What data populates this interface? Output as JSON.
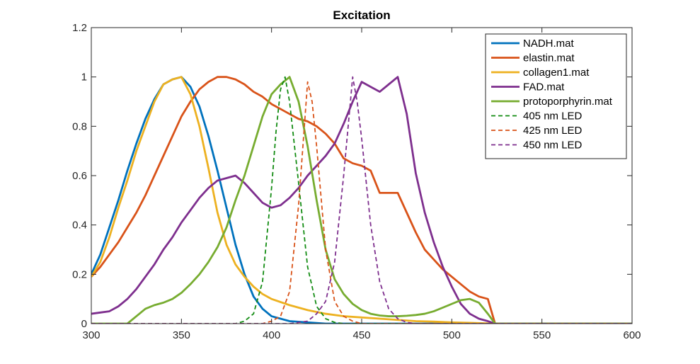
{
  "chart_data": {
    "type": "line",
    "title": "Excitation",
    "xlabel": "",
    "ylabel": "",
    "xlim": [
      300,
      600
    ],
    "ylim": [
      0,
      1.2
    ],
    "xticks": [
      300,
      350,
      400,
      450,
      500,
      550,
      600
    ],
    "xtick_labels": [
      "300",
      "350",
      "400",
      "450",
      "500",
      "550",
      "600"
    ],
    "yticks": [
      0,
      0.2,
      0.4,
      0.6,
      0.8,
      1,
      1.2
    ],
    "ytick_labels": [
      "0",
      "0.2",
      "0.4",
      "0.6",
      "0.8",
      "1",
      "1.2"
    ],
    "grid": false,
    "legend_position": "top-right",
    "series": [
      {
        "name": "NADH.mat",
        "color": "#0072BD",
        "dash": "solid",
        "points": [
          [
            300,
            0.2
          ],
          [
            305,
            0.28
          ],
          [
            310,
            0.39
          ],
          [
            315,
            0.5
          ],
          [
            320,
            0.62
          ],
          [
            325,
            0.73
          ],
          [
            330,
            0.83
          ],
          [
            335,
            0.91
          ],
          [
            340,
            0.97
          ],
          [
            345,
            0.99
          ],
          [
            350,
            1.0
          ],
          [
            355,
            0.96
          ],
          [
            360,
            0.88
          ],
          [
            365,
            0.76
          ],
          [
            370,
            0.62
          ],
          [
            375,
            0.47
          ],
          [
            380,
            0.32
          ],
          [
            385,
            0.2
          ],
          [
            390,
            0.11
          ],
          [
            395,
            0.06
          ],
          [
            400,
            0.03
          ],
          [
            410,
            0.01
          ],
          [
            430,
            0.0
          ],
          [
            600,
            0.0
          ]
        ]
      },
      {
        "name": "elastin.mat",
        "color": "#D95319",
        "dash": "solid",
        "points": [
          [
            300,
            0.19
          ],
          [
            305,
            0.23
          ],
          [
            310,
            0.28
          ],
          [
            315,
            0.33
          ],
          [
            320,
            0.39
          ],
          [
            325,
            0.45
          ],
          [
            330,
            0.52
          ],
          [
            335,
            0.6
          ],
          [
            340,
            0.68
          ],
          [
            345,
            0.76
          ],
          [
            350,
            0.84
          ],
          [
            355,
            0.9
          ],
          [
            360,
            0.95
          ],
          [
            365,
            0.98
          ],
          [
            370,
            1.0
          ],
          [
            375,
            1.0
          ],
          [
            380,
            0.99
          ],
          [
            385,
            0.97
          ],
          [
            390,
            0.94
          ],
          [
            395,
            0.92
          ],
          [
            400,
            0.89
          ],
          [
            405,
            0.87
          ],
          [
            410,
            0.85
          ],
          [
            415,
            0.83
          ],
          [
            420,
            0.82
          ],
          [
            425,
            0.8
          ],
          [
            430,
            0.77
          ],
          [
            435,
            0.73
          ],
          [
            440,
            0.67
          ],
          [
            445,
            0.65
          ],
          [
            450,
            0.64
          ],
          [
            455,
            0.62
          ],
          [
            460,
            0.53
          ],
          [
            465,
            0.53
          ],
          [
            470,
            0.53
          ],
          [
            475,
            0.45
          ],
          [
            480,
            0.37
          ],
          [
            485,
            0.3
          ],
          [
            490,
            0.26
          ],
          [
            495,
            0.22
          ],
          [
            500,
            0.19
          ],
          [
            505,
            0.16
          ],
          [
            510,
            0.13
          ],
          [
            515,
            0.11
          ],
          [
            520,
            0.1
          ],
          [
            524,
            0.0
          ],
          [
            600,
            0.0
          ]
        ]
      },
      {
        "name": "collagen1.mat",
        "color": "#EDB120",
        "dash": "solid",
        "points": [
          [
            300,
            0.19
          ],
          [
            305,
            0.25
          ],
          [
            310,
            0.35
          ],
          [
            315,
            0.47
          ],
          [
            320,
            0.58
          ],
          [
            325,
            0.7
          ],
          [
            330,
            0.8
          ],
          [
            335,
            0.9
          ],
          [
            340,
            0.97
          ],
          [
            345,
            0.99
          ],
          [
            350,
            1.0
          ],
          [
            355,
            0.93
          ],
          [
            360,
            0.8
          ],
          [
            365,
            0.63
          ],
          [
            370,
            0.45
          ],
          [
            375,
            0.32
          ],
          [
            380,
            0.24
          ],
          [
            385,
            0.19
          ],
          [
            390,
            0.15
          ],
          [
            395,
            0.12
          ],
          [
            400,
            0.1
          ],
          [
            410,
            0.075
          ],
          [
            420,
            0.055
          ],
          [
            430,
            0.04
          ],
          [
            440,
            0.03
          ],
          [
            450,
            0.025
          ],
          [
            460,
            0.02
          ],
          [
            470,
            0.015
          ],
          [
            480,
            0.01
          ],
          [
            490,
            0.008
          ],
          [
            500,
            0.005
          ],
          [
            510,
            0.003
          ],
          [
            524,
            0.0
          ],
          [
            600,
            0.0
          ]
        ]
      },
      {
        "name": "FAD.mat",
        "color": "#7E2F8E",
        "dash": "solid",
        "points": [
          [
            300,
            0.04
          ],
          [
            305,
            0.045
          ],
          [
            310,
            0.05
          ],
          [
            315,
            0.07
          ],
          [
            320,
            0.1
          ],
          [
            325,
            0.14
          ],
          [
            330,
            0.19
          ],
          [
            335,
            0.24
          ],
          [
            340,
            0.3
          ],
          [
            345,
            0.35
          ],
          [
            350,
            0.41
          ],
          [
            355,
            0.46
          ],
          [
            360,
            0.51
          ],
          [
            365,
            0.55
          ],
          [
            370,
            0.58
          ],
          [
            375,
            0.59
          ],
          [
            380,
            0.6
          ],
          [
            385,
            0.57
          ],
          [
            390,
            0.53
          ],
          [
            395,
            0.49
          ],
          [
            400,
            0.47
          ],
          [
            405,
            0.48
          ],
          [
            410,
            0.51
          ],
          [
            415,
            0.55
          ],
          [
            420,
            0.6
          ],
          [
            425,
            0.64
          ],
          [
            430,
            0.68
          ],
          [
            435,
            0.73
          ],
          [
            440,
            0.81
          ],
          [
            445,
            0.9
          ],
          [
            450,
            0.98
          ],
          [
            455,
            0.96
          ],
          [
            460,
            0.94
          ],
          [
            465,
            0.97
          ],
          [
            470,
            1.0
          ],
          [
            475,
            0.85
          ],
          [
            480,
            0.61
          ],
          [
            485,
            0.45
          ],
          [
            490,
            0.33
          ],
          [
            495,
            0.23
          ],
          [
            500,
            0.15
          ],
          [
            505,
            0.08
          ],
          [
            510,
            0.04
          ],
          [
            515,
            0.02
          ],
          [
            520,
            0.01
          ],
          [
            524,
            0.0
          ],
          [
            600,
            0.0
          ]
        ]
      },
      {
        "name": "protoporphyrin.mat",
        "color": "#77AC30",
        "dash": "solid",
        "points": [
          [
            300,
            0.0
          ],
          [
            320,
            0.0
          ],
          [
            325,
            0.03
          ],
          [
            330,
            0.06
          ],
          [
            335,
            0.075
          ],
          [
            340,
            0.085
          ],
          [
            345,
            0.1
          ],
          [
            350,
            0.125
          ],
          [
            355,
            0.16
          ],
          [
            360,
            0.2
          ],
          [
            365,
            0.25
          ],
          [
            370,
            0.31
          ],
          [
            375,
            0.39
          ],
          [
            380,
            0.5
          ],
          [
            385,
            0.6
          ],
          [
            390,
            0.72
          ],
          [
            395,
            0.84
          ],
          [
            400,
            0.93
          ],
          [
            405,
            0.97
          ],
          [
            410,
            1.0
          ],
          [
            415,
            0.9
          ],
          [
            420,
            0.72
          ],
          [
            425,
            0.5
          ],
          [
            430,
            0.3
          ],
          [
            435,
            0.18
          ],
          [
            440,
            0.12
          ],
          [
            445,
            0.08
          ],
          [
            450,
            0.055
          ],
          [
            455,
            0.04
          ],
          [
            460,
            0.033
          ],
          [
            465,
            0.03
          ],
          [
            470,
            0.03
          ],
          [
            475,
            0.032
          ],
          [
            480,
            0.035
          ],
          [
            485,
            0.04
          ],
          [
            490,
            0.05
          ],
          [
            495,
            0.065
          ],
          [
            500,
            0.08
          ],
          [
            505,
            0.095
          ],
          [
            510,
            0.1
          ],
          [
            515,
            0.085
          ],
          [
            520,
            0.04
          ],
          [
            524,
            0.0
          ],
          [
            600,
            0.0
          ]
        ]
      },
      {
        "name": "405 nm LED",
        "color": "#138C13",
        "dash": "dashed",
        "points": [
          [
            300,
            0.0
          ],
          [
            380,
            0.0
          ],
          [
            385,
            0.01
          ],
          [
            390,
            0.04
          ],
          [
            395,
            0.17
          ],
          [
            400,
            0.55
          ],
          [
            402.5,
            0.78
          ],
          [
            405,
            0.95
          ],
          [
            407.5,
            1.0
          ],
          [
            410,
            0.9
          ],
          [
            415,
            0.57
          ],
          [
            420,
            0.23
          ],
          [
            425,
            0.07
          ],
          [
            430,
            0.02
          ],
          [
            435,
            0.005
          ],
          [
            440,
            0.0
          ],
          [
            600,
            0.0
          ]
        ]
      },
      {
        "name": "425 nm LED",
        "color": "#D95319",
        "dash": "dashed",
        "points": [
          [
            300,
            0.0
          ],
          [
            395,
            0.0
          ],
          [
            400,
            0.01
          ],
          [
            405,
            0.03
          ],
          [
            410,
            0.13
          ],
          [
            415,
            0.48
          ],
          [
            420,
            0.98
          ],
          [
            422.5,
            0.9
          ],
          [
            425,
            0.72
          ],
          [
            430,
            0.3
          ],
          [
            435,
            0.09
          ],
          [
            440,
            0.03
          ],
          [
            445,
            0.01
          ],
          [
            450,
            0.0
          ],
          [
            600,
            0.0
          ]
        ]
      },
      {
        "name": "450 nm LED",
        "color": "#7E2F8E",
        "dash": "dashed",
        "points": [
          [
            300,
            0.0
          ],
          [
            410,
            0.0
          ],
          [
            420,
            0.01
          ],
          [
            425,
            0.04
          ],
          [
            430,
            0.09
          ],
          [
            435,
            0.25
          ],
          [
            440,
            0.6
          ],
          [
            445,
            1.0
          ],
          [
            447.5,
            0.9
          ],
          [
            450,
            0.75
          ],
          [
            455,
            0.4
          ],
          [
            460,
            0.17
          ],
          [
            465,
            0.06
          ],
          [
            470,
            0.02
          ],
          [
            475,
            0.005
          ],
          [
            480,
            0.0
          ],
          [
            600,
            0.0
          ]
        ]
      }
    ]
  }
}
